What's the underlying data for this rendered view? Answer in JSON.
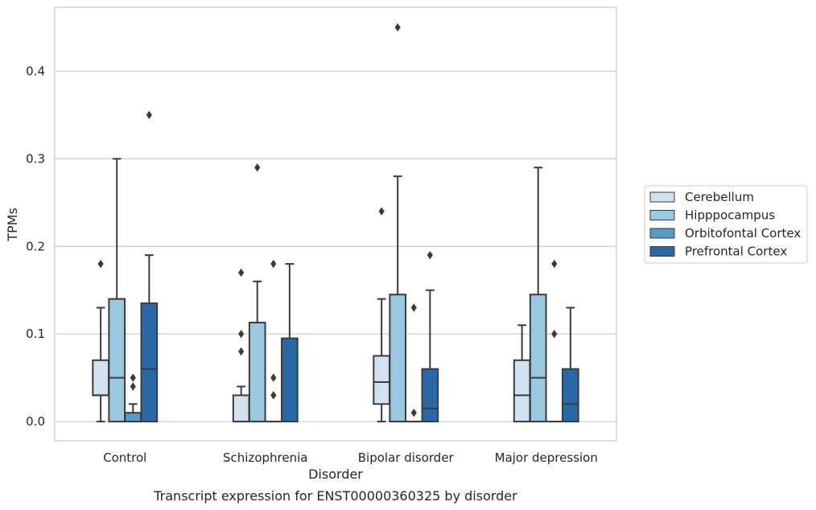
{
  "chart_data": {
    "type": "box",
    "xlabel": "Disorder",
    "ylabel": "TPMs",
    "caption": "Transcript expression for ENST00000360325 by disorder",
    "ylim": [
      -0.022,
      0.473
    ],
    "yticks": [
      "0.0",
      "0.1",
      "0.2",
      "0.3",
      "0.4"
    ],
    "ytick_values": [
      0.0,
      0.1,
      0.2,
      0.3,
      0.4
    ],
    "grid": "horizontal",
    "legend_position": "right",
    "categories": [
      "Control",
      "Schizophrenia",
      "Bipolar disorder",
      "Major depression"
    ],
    "series": [
      {
        "name": "Cerebellum",
        "color": "#d0e1f2",
        "boxes": [
          {
            "q1": 0.03,
            "median": 0.03,
            "q3": 0.07,
            "whisker_low": 0.0,
            "whisker_high": 0.13,
            "outliers": [
              0.18
            ]
          },
          {
            "q1": 0.0,
            "median": 0.0,
            "q3": 0.03,
            "whisker_low": 0.0,
            "whisker_high": 0.04,
            "outliers": [
              0.17,
              0.1,
              0.08
            ]
          },
          {
            "q1": 0.02,
            "median": 0.045,
            "q3": 0.075,
            "whisker_low": 0.0,
            "whisker_high": 0.14,
            "outliers": [
              0.24
            ]
          },
          {
            "q1": 0.0,
            "median": 0.03,
            "q3": 0.07,
            "whisker_low": 0.0,
            "whisker_high": 0.11,
            "outliers": []
          }
        ]
      },
      {
        "name": "Hipppocampus",
        "color": "#9ac8e0",
        "boxes": [
          {
            "q1": 0.0,
            "median": 0.05,
            "q3": 0.14,
            "whisker_low": 0.0,
            "whisker_high": 0.3,
            "outliers": []
          },
          {
            "q1": 0.0,
            "median": 0.0,
            "q3": 0.113,
            "whisker_low": 0.0,
            "whisker_high": 0.16,
            "outliers": [
              0.29
            ]
          },
          {
            "q1": 0.0,
            "median": 0.0,
            "q3": 0.145,
            "whisker_low": 0.0,
            "whisker_high": 0.28,
            "outliers": [
              0.45
            ]
          },
          {
            "q1": 0.0,
            "median": 0.05,
            "q3": 0.145,
            "whisker_low": 0.0,
            "whisker_high": 0.29,
            "outliers": []
          }
        ]
      },
      {
        "name": "Orbitofontal Cortex",
        "color": "#5a9ac9",
        "boxes": [
          {
            "q1": 0.0,
            "median": 0.0,
            "q3": 0.01,
            "whisker_low": 0.0,
            "whisker_high": 0.02,
            "outliers": [
              0.05,
              0.04
            ]
          },
          {
            "q1": 0.0,
            "median": 0.0,
            "q3": 0.0,
            "whisker_low": 0.0,
            "whisker_high": 0.0,
            "outliers": [
              0.18,
              0.05,
              0.03
            ]
          },
          {
            "q1": 0.0,
            "median": 0.0,
            "q3": 0.0,
            "whisker_low": 0.0,
            "whisker_high": 0.0,
            "outliers": [
              0.13,
              0.01
            ]
          },
          {
            "q1": 0.0,
            "median": 0.0,
            "q3": 0.0,
            "whisker_low": 0.0,
            "whisker_high": 0.0,
            "outliers": [
              0.18,
              0.1
            ]
          }
        ]
      },
      {
        "name": "Prefrontal Cortex",
        "color": "#2a69a8",
        "boxes": [
          {
            "q1": 0.0,
            "median": 0.06,
            "q3": 0.135,
            "whisker_low": 0.0,
            "whisker_high": 0.19,
            "outliers": [
              0.35
            ]
          },
          {
            "q1": 0.0,
            "median": 0.0,
            "q3": 0.095,
            "whisker_low": 0.0,
            "whisker_high": 0.18,
            "outliers": []
          },
          {
            "q1": 0.0,
            "median": 0.015,
            "q3": 0.06,
            "whisker_low": 0.0,
            "whisker_high": 0.15,
            "outliers": [
              0.19
            ]
          },
          {
            "q1": 0.0,
            "median": 0.02,
            "q3": 0.06,
            "whisker_low": 0.0,
            "whisker_high": 0.13,
            "outliers": []
          }
        ]
      }
    ]
  },
  "colors": {
    "line": "#3b3b3b",
    "grid": "#cccccc",
    "frame": "#cccccc",
    "text": "#262626"
  }
}
